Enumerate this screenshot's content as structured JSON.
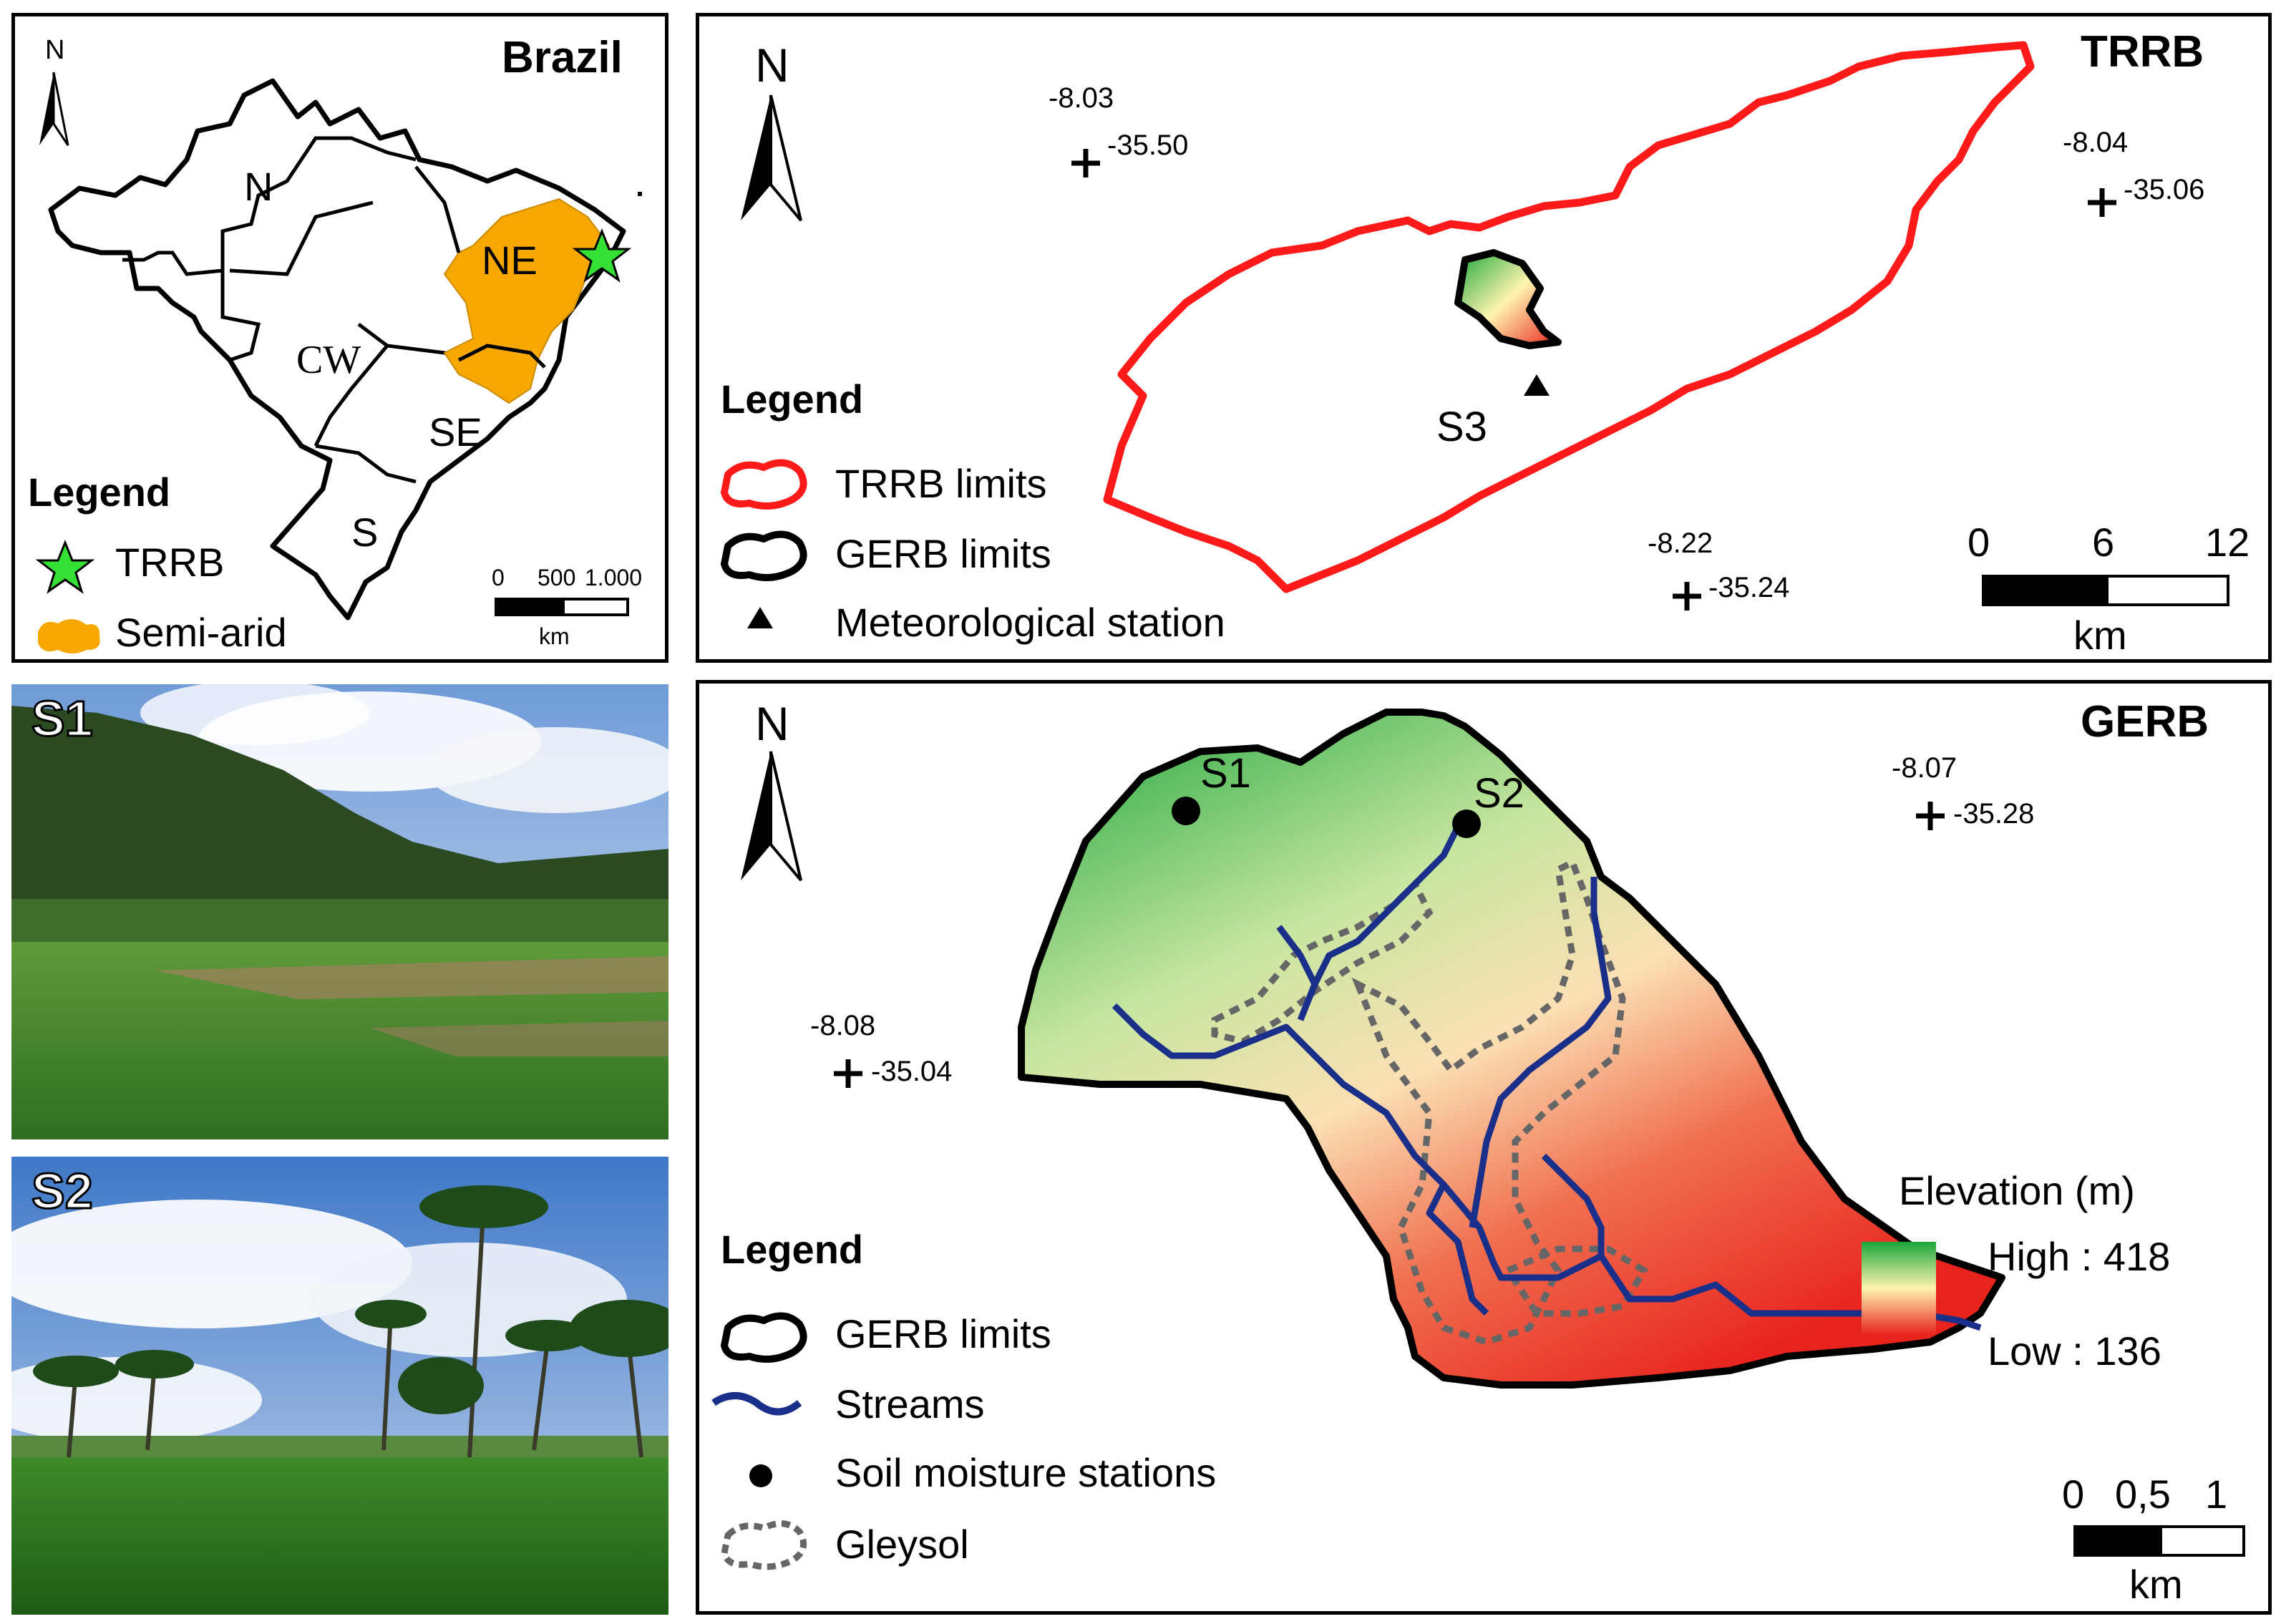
{
  "brazil": {
    "title": "Brazil",
    "north": "N",
    "regions": {
      "n": "N",
      "ne": "NE",
      "cw": "CW",
      "se": "SE",
      "s": "S"
    },
    "legend_title": "Legend",
    "legend_trrb": "TRRB",
    "legend_semiarid": "Semi-arid",
    "scale_ticks": [
      "0",
      "500",
      "1.000"
    ],
    "scale_unit": "km"
  },
  "trrb": {
    "title": "TRRB",
    "north": "N",
    "station_label": "S3",
    "coords": [
      {
        "lat": "-8.03",
        "lon": "-35.50"
      },
      {
        "lat": "-8.04",
        "lon": "-35.06"
      },
      {
        "lat": "-8.22",
        "lon": "-35.24"
      }
    ],
    "legend_title": "Legend",
    "legend_trrb": "TRRB limits",
    "legend_gerb": "GERB limits",
    "legend_station": "Meteorological station",
    "scale_ticks": [
      "0",
      "6",
      "12"
    ],
    "scale_unit": "km"
  },
  "photos": {
    "s1": "S1",
    "s2": "S2"
  },
  "gerb": {
    "title": "GERB",
    "north": "N",
    "station_s1": "S1",
    "station_s2": "S2",
    "coords": [
      {
        "lat": "-8.07",
        "lon": "-35.28"
      },
      {
        "lat": "-8.08",
        "lon": "-35.04"
      }
    ],
    "legend_title": "Legend",
    "legend_gerb": "GERB limits",
    "legend_streams": "Streams",
    "legend_soil": "Soil moisture stations",
    "legend_gleysol": "Gleysol",
    "elevation_title": "Elevation (m)",
    "elevation_high": "High : 418",
    "elevation_low": "Low : 136",
    "scale_ticks": [
      "0",
      "0,5",
      "1"
    ],
    "scale_unit": "km"
  },
  "colors": {
    "trrb_limit": "#ff1a1a",
    "semi_arid": "#f7a800",
    "star": "#33e033",
    "stream": "#1a2f8a",
    "gleysol": "#666666",
    "elev_high": "#1aa63a",
    "elev_mid": "#fff4b0",
    "elev_low": "#e8231c"
  }
}
